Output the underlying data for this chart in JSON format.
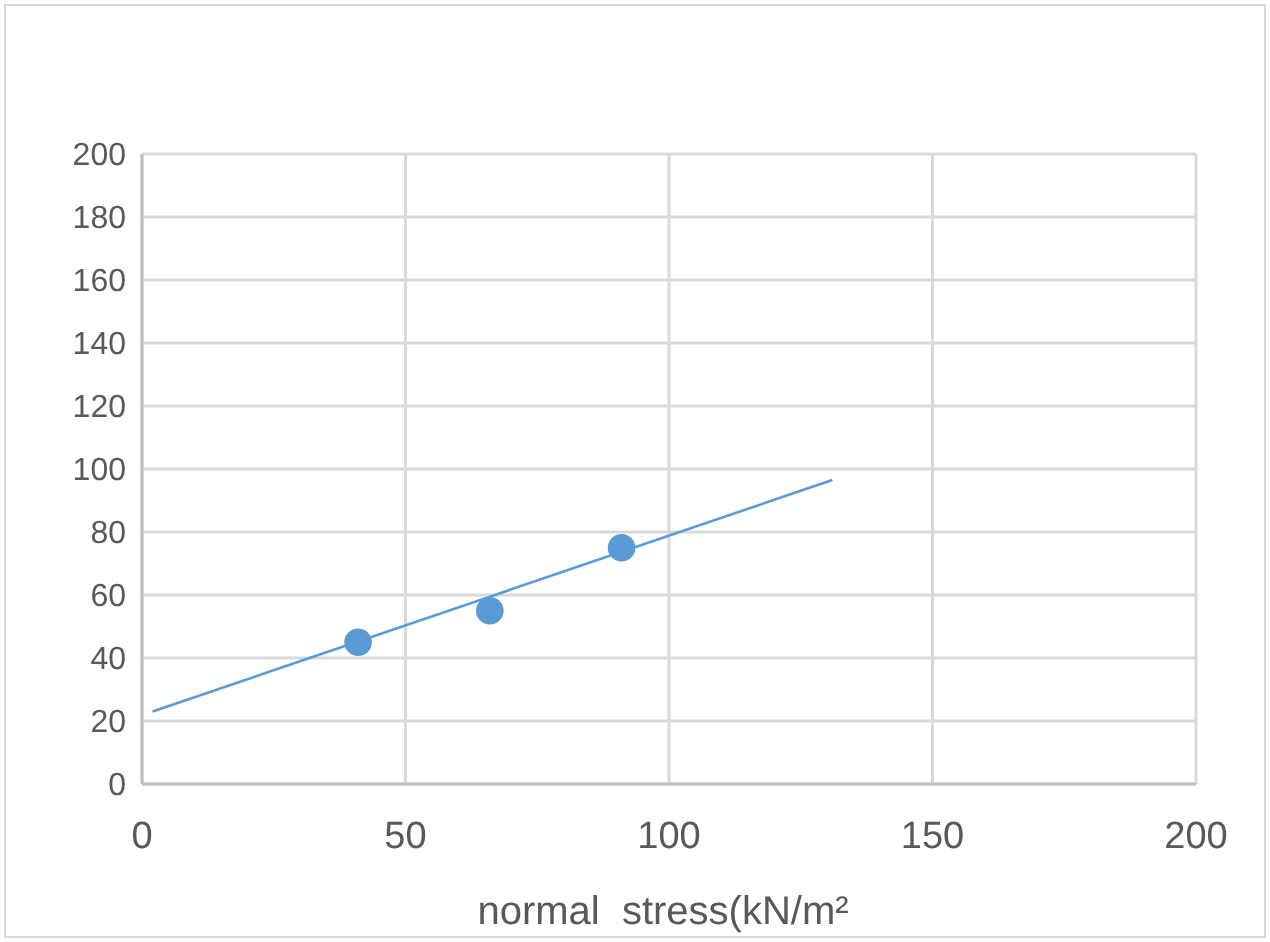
{
  "chart_data": {
    "type": "scatter",
    "xlabel": "normal  stress(kN/m²",
    "series": [
      {
        "color": "#5b9bd5",
        "marker": "circle",
        "x": [
          41,
          66,
          91
        ],
        "values": [
          45,
          55,
          75
        ]
      },
      {
        "type": "line",
        "color": "#5b9bd5",
        "marker": "none",
        "x": [
          2,
          131
        ],
        "values": [
          23,
          96.5
        ]
      }
    ],
    "xlim": [
      0,
      200
    ],
    "xticks": [
      0,
      50,
      100,
      150,
      200
    ],
    "ylim": [
      0,
      200
    ],
    "yticks": [
      0,
      20,
      40,
      60,
      80,
      100,
      120,
      140,
      160,
      180,
      200
    ],
    "grid": true
  }
}
